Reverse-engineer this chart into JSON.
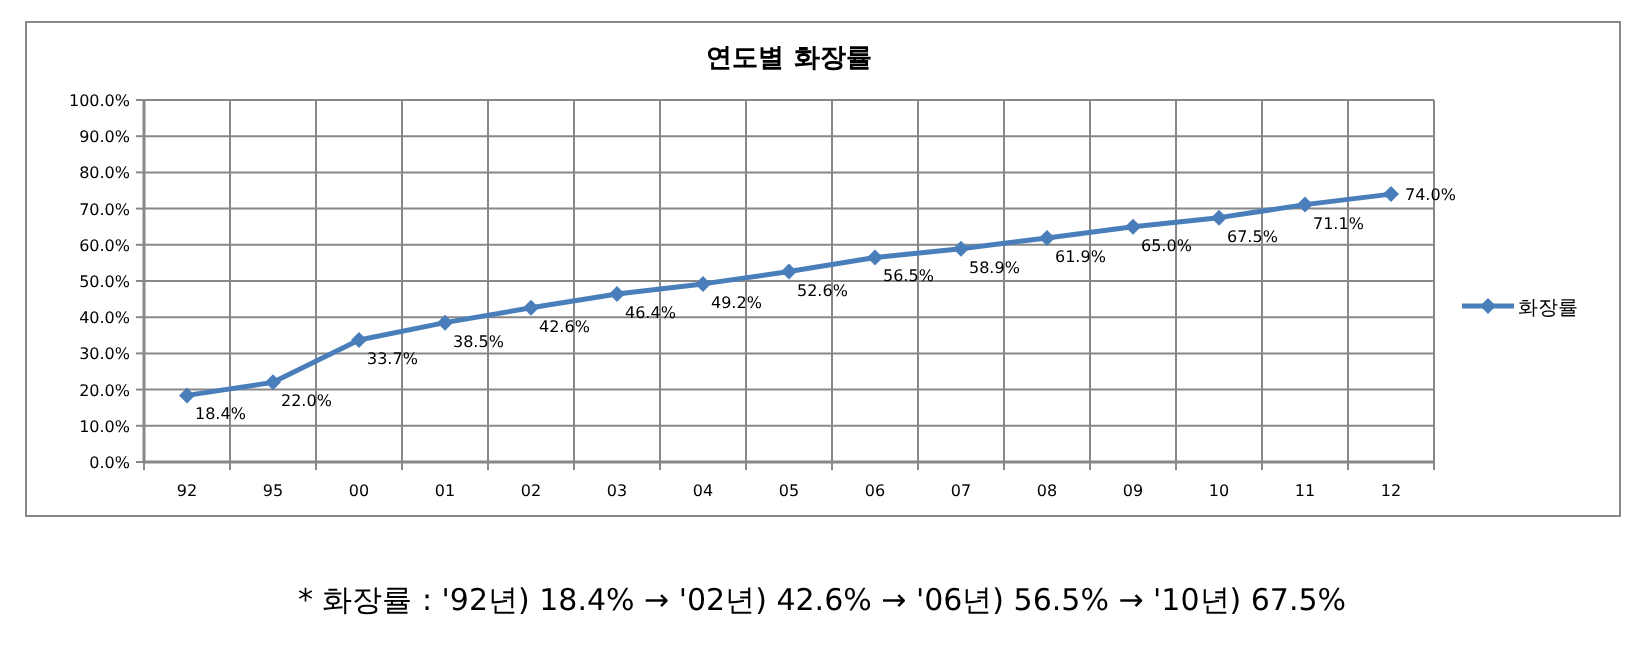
{
  "chart_data": {
    "type": "line",
    "title": "연도별 화장률",
    "categories": [
      "92",
      "95",
      "00",
      "01",
      "02",
      "03",
      "04",
      "05",
      "06",
      "07",
      "08",
      "09",
      "10",
      "11",
      "12"
    ],
    "series": [
      {
        "name": "화장률",
        "color": "#4a7ebb",
        "values": [
          18.4,
          22.0,
          33.7,
          38.5,
          42.6,
          46.4,
          49.2,
          52.6,
          56.5,
          58.9,
          61.9,
          65.0,
          67.5,
          71.1,
          74.0
        ],
        "value_labels": [
          "18.4%",
          "22.0%",
          "33.7%",
          "38.5%",
          "42.6%",
          "46.4%",
          "49.2%",
          "52.6%",
          "56.5%",
          "58.9%",
          "61.9%",
          "65.0%",
          "67.5%",
          "71.1%",
          "74.0%"
        ]
      }
    ],
    "ylim": [
      0,
      100
    ],
    "yticks": [
      {
        "value": 0,
        "label": "0.0%"
      },
      {
        "value": 10,
        "label": "10.0%"
      },
      {
        "value": 20,
        "label": "20.0%"
      },
      {
        "value": 30,
        "label": "30.0%"
      },
      {
        "value": 40,
        "label": "40.0%"
      },
      {
        "value": 50,
        "label": "50.0%"
      },
      {
        "value": 60,
        "label": "60.0%"
      },
      {
        "value": 70,
        "label": "70.0%"
      },
      {
        "value": 80,
        "label": "80.0%"
      },
      {
        "value": 90,
        "label": "90.0%"
      },
      {
        "value": 100,
        "label": "100.0%"
      }
    ],
    "grid": true,
    "legend": "right",
    "marker": "diamond",
    "line_style": "solid",
    "annotations": [
      "* 화장률 : '92년) 18.4% → '02년) 42.6% → '06년) 56.5% → '10년) 67.5%"
    ]
  }
}
